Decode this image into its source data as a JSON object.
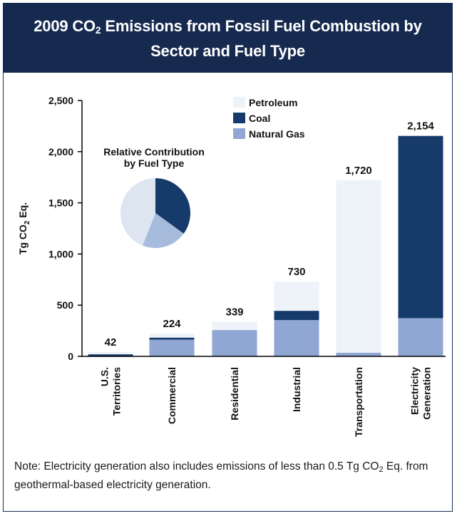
{
  "header": {
    "title_line1_pre": "2009 CO",
    "title_sub": "2",
    "title_line1_post": " Emissions from Fossil Fuel Combustion by",
    "title_line2": "Sector and Fuel Type"
  },
  "note": {
    "pre": "Note: Electricity generation also includes emissions of less than 0.5 Tg CO",
    "sub": "2",
    "post": " Eq. from geothermal-based electricity generation."
  },
  "colors": {
    "petroleum": "#eef2f9",
    "coal": "#163b6b",
    "natural_gas": "#8fa7d2",
    "header_bg": "#16294f",
    "pie_natural_gas": "#a7bbdd",
    "pie_petroleum": "#dde5f1"
  },
  "chart_data": {
    "type": "bar",
    "stacked": true,
    "ylabel": "Tg CO2 Eq.",
    "ylabel_parts": {
      "pre": "Tg CO",
      "sub": "2",
      "post": " Eq."
    },
    "ylim": [
      0,
      2500
    ],
    "yticks": [
      0,
      500,
      1000,
      1500,
      2000,
      2500
    ],
    "ytick_labels": [
      "0",
      "500",
      "1,000",
      "1,500",
      "2,000",
      "2,500"
    ],
    "categories": [
      {
        "lines": [
          "U.S.",
          "Territories"
        ]
      },
      {
        "lines": [
          "Commercial"
        ]
      },
      {
        "lines": [
          "Residential"
        ]
      },
      {
        "lines": [
          "Industrial"
        ]
      },
      {
        "lines": [
          "Transportation"
        ]
      },
      {
        "lines": [
          "Electricity",
          "Generation"
        ]
      }
    ],
    "series": [
      {
        "name": "Natural Gas",
        "color_key": "natural_gas",
        "values": [
          0,
          163,
          257,
          355,
          36,
          373
        ]
      },
      {
        "name": "Coal",
        "color_key": "coal",
        "values": [
          20,
          20,
          0,
          90,
          0,
          1781
        ]
      },
      {
        "name": "Petroleum",
        "color_key": "petroleum",
        "values": [
          22,
          41,
          82,
          285,
          1684,
          0
        ]
      }
    ],
    "totals": [
      42,
      224,
      339,
      730,
      1720,
      2154
    ],
    "total_labels": [
      "42",
      "224",
      "339",
      "730",
      "1,720",
      "2,154"
    ],
    "legend": {
      "position": "top-center",
      "entries": [
        {
          "name": "Petroleum",
          "color_key": "petroleum"
        },
        {
          "name": "Coal",
          "color_key": "coal"
        },
        {
          "name": "Natural Gas",
          "color_key": "natural_gas"
        }
      ]
    },
    "inset_pie": {
      "title_lines": [
        "Relative Contribution",
        "by Fuel Type"
      ],
      "slices": [
        {
          "name": "Coal",
          "value": 35,
          "color_key": "coal"
        },
        {
          "name": "Natural Gas",
          "value": 21,
          "color_key": "pie_natural_gas"
        },
        {
          "name": "Petroleum",
          "value": 44,
          "color_key": "pie_petroleum"
        }
      ]
    }
  }
}
